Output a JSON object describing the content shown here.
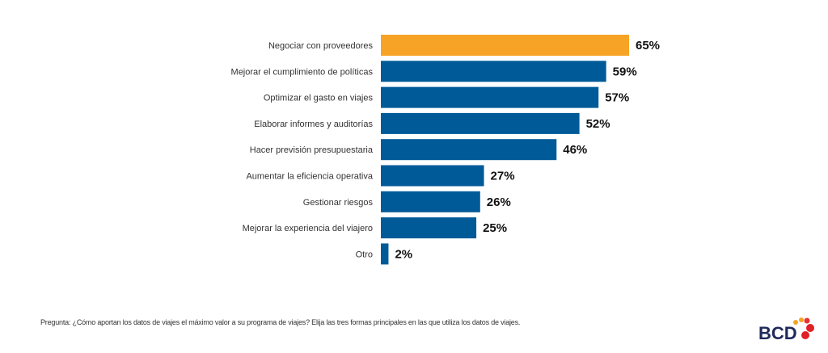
{
  "chart_data": {
    "type": "bar",
    "orientation": "horizontal",
    "categories": [
      "Negociar con proveedores",
      "Mejorar el cumplimiento de políticas",
      "Optimizar el gasto en viajes",
      "Elaborar informes y auditorías",
      "Hacer previsión presupuestaria",
      "Aumentar la eficiencia operativa",
      "Gestionar riesgos",
      "Mejorar la experiencia del viajero",
      "Otro"
    ],
    "values": [
      65,
      59,
      57,
      52,
      46,
      27,
      26,
      25,
      2
    ],
    "unit": "%",
    "highlight_index": 0,
    "colors": {
      "highlight": "#F7A325",
      "default": "#005A98"
    },
    "title": "",
    "xlabel": "",
    "ylabel": "",
    "xlim": [
      0,
      100
    ],
    "grid": false
  },
  "footer": {
    "question": "Pregunta: ¿Cómo aportan los datos de viajes el máximo valor a su programa de viajes? Elija las tres formas principales en las que utiliza los datos de viajes."
  },
  "logo": {
    "text": "BCD"
  }
}
